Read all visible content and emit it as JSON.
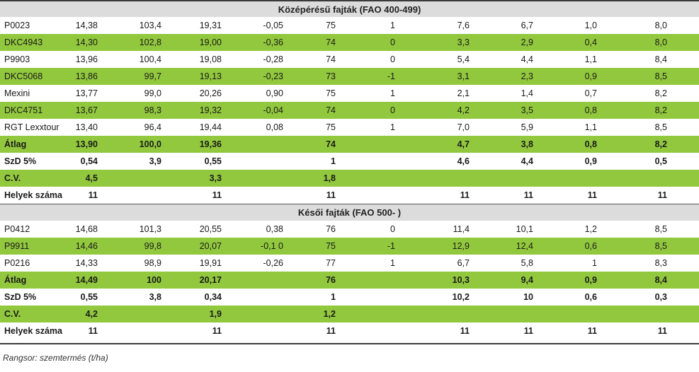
{
  "sections": [
    {
      "title": "Középérésű fajták (FAO 400-499)",
      "rows": [
        {
          "cells": [
            "P0023",
            "14,38",
            "103,4",
            "19,31",
            "-0,05",
            "75",
            "1",
            "7,6",
            "6,7",
            "1,0",
            "8,0"
          ],
          "shade": "white",
          "bold": false
        },
        {
          "cells": [
            "DKC4943",
            "14,30",
            "102,8",
            "19,00",
            "-0,36",
            "74",
            "0",
            "3,3",
            "2,9",
            "0,4",
            "8,0"
          ],
          "shade": "green",
          "bold": false
        },
        {
          "cells": [
            "P9903",
            "13,96",
            "100,4",
            "19,08",
            "-0,28",
            "74",
            "0",
            "5,4",
            "4,4",
            "1,1",
            "8,4"
          ],
          "shade": "white",
          "bold": false
        },
        {
          "cells": [
            "DKC5068",
            "13,86",
            "99,7",
            "19,13",
            "-0,23",
            "73",
            "-1",
            "3,1",
            "2,3",
            "0,9",
            "8,5"
          ],
          "shade": "green",
          "bold": false
        },
        {
          "cells": [
            "Mexini",
            "13,77",
            "99,0",
            "20,26",
            "0,90",
            "75",
            "1",
            "2,1",
            "1,4",
            "0,7",
            "8,2"
          ],
          "shade": "white",
          "bold": false
        },
        {
          "cells": [
            "DKC4751",
            "13,67",
            "98,3",
            "19,32",
            "-0,04",
            "74",
            "0",
            "4,2",
            "3,5",
            "0,8",
            "8,2"
          ],
          "shade": "green",
          "bold": false
        },
        {
          "cells": [
            "RGT Lexxtour",
            "13,40",
            "96,4",
            "19,44",
            "0,08",
            "75",
            "1",
            "7,0",
            "5,9",
            "1,1",
            "8,5"
          ],
          "shade": "white",
          "bold": false
        },
        {
          "cells": [
            "Átlag",
            "13,90",
            "100,0",
            "19,36",
            "",
            "74",
            "",
            "4,7",
            "3,8",
            "0,8",
            "8,2"
          ],
          "shade": "green",
          "bold": true
        },
        {
          "cells": [
            "SzD 5%",
            "0,54",
            "3,9",
            "0,55",
            "",
            "1",
            "",
            "4,6",
            "4,4",
            "0,9",
            "0,5"
          ],
          "shade": "white",
          "bold": true
        },
        {
          "cells": [
            "C.V.",
            "4,5",
            "",
            "3,3",
            "",
            "1,8",
            "",
            "",
            "",
            "",
            ""
          ],
          "shade": "green",
          "bold": true
        },
        {
          "cells": [
            "Helyek száma",
            "11",
            "",
            "11",
            "",
            "11",
            "",
            "11",
            "11",
            "11",
            "11"
          ],
          "shade": "white",
          "bold": true
        }
      ]
    },
    {
      "title": "Késői fajták (FAO 500- )",
      "rows": [
        {
          "cells": [
            "P0412",
            "14,68",
            "101,3",
            "20,55",
            "0,38",
            "76",
            "0",
            "11,4",
            "10,1",
            "1,2",
            "8,5"
          ],
          "shade": "white",
          "bold": false
        },
        {
          "cells": [
            "P9911",
            "14,46",
            "99,8",
            "20,07",
            "-0,1 0",
            "75",
            "-1",
            "12,9",
            "12,4",
            "0,6",
            "8,5"
          ],
          "shade": "green",
          "bold": false
        },
        {
          "cells": [
            "P0216",
            "14,33",
            "98,9",
            "19,91",
            "-0,26",
            "77",
            "1",
            "6,7",
            "5,8",
            "1",
            "8,3"
          ],
          "shade": "white",
          "bold": false
        },
        {
          "cells": [
            "Átlag",
            "14,49",
            "100",
            "20,17",
            "",
            "76",
            "",
            "10,3",
            "9,4",
            "0,9",
            "8,4"
          ],
          "shade": "green",
          "bold": true
        },
        {
          "cells": [
            "SzD 5%",
            "0,55",
            "3,8",
            "0,34",
            "",
            "1",
            "",
            "10,2",
            "10",
            "0,6",
            "0,3"
          ],
          "shade": "white",
          "bold": true
        },
        {
          "cells": [
            "C.V.",
            "4,2",
            "",
            "1,9",
            "",
            "1,2",
            "",
            "",
            "",
            "",
            ""
          ],
          "shade": "green",
          "bold": true
        },
        {
          "cells": [
            "Helyek száma",
            "11",
            "",
            "11",
            "",
            "11",
            "",
            "11",
            "11",
            "11",
            "11"
          ],
          "shade": "white",
          "bold": true
        }
      ]
    }
  ],
  "footnote": "Rangsor: szemtermés (t/ha)",
  "colors": {
    "green": "#92c83e",
    "header_gray": "#dcdcdc"
  }
}
